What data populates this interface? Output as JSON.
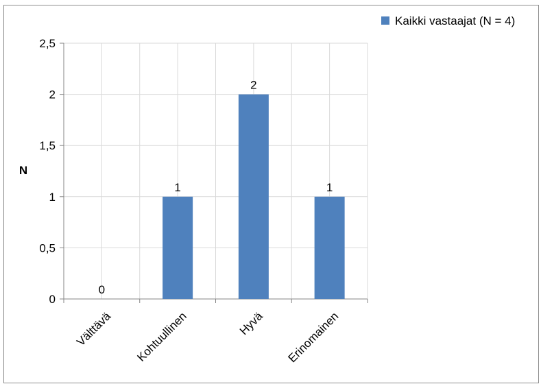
{
  "chart_data": {
    "type": "bar",
    "title": "",
    "xlabel": "",
    "ylabel": "N",
    "categories": [
      "Välttävä",
      "Kohtuullinen",
      "Hyvä",
      "Erinomainen"
    ],
    "series": [
      {
        "name": "Kaikki vastaajat (N = 4)",
        "values": [
          0,
          1,
          2,
          1
        ],
        "color": "#4f81bd"
      }
    ],
    "data_labels": [
      "0",
      "1",
      "2",
      "1"
    ],
    "ylim": [
      0,
      2.5
    ],
    "yticks": [
      0,
      0.5,
      1,
      1.5,
      2,
      2.5
    ],
    "ytick_labels": [
      "0",
      "0,5",
      "1",
      "1,5",
      "2",
      "2,5"
    ],
    "grid": true,
    "legend_position": "top-right",
    "gridline_color": "#d9d9d9",
    "axis_color": "#868686"
  }
}
